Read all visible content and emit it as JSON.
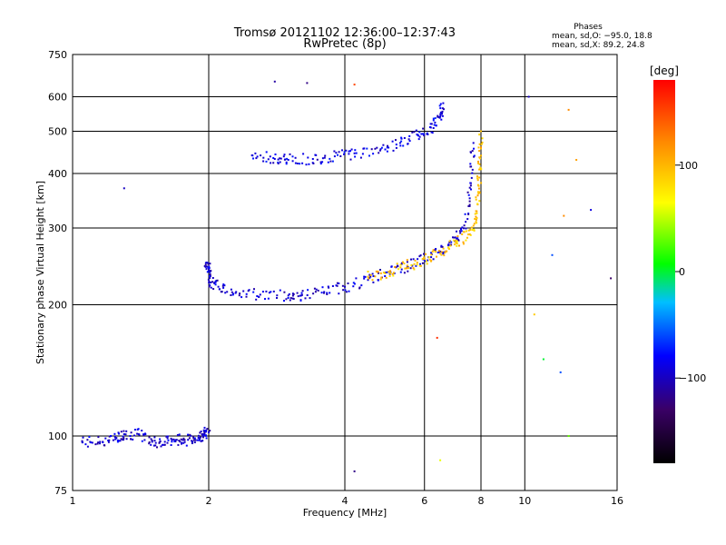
{
  "chart_data": {
    "type": "scatter",
    "title": "Tromsø 20121102 12:36:00–12:37:43",
    "subtitle": "RwPretec (8p)",
    "stats": {
      "heading": "Phases",
      "line1": "mean, sd,O: −95.0, 18.8",
      "line2": "mean, sd,X:  89.2, 24.8"
    },
    "xlabel": "Frequency [MHz]",
    "ylabel": "Stationary phase Virtual Height [km]",
    "xscale": "log",
    "yscale": "log",
    "xlim": [
      1,
      16
    ],
    "ylim": [
      75,
      750
    ],
    "xticks": [
      {
        "value": 1,
        "label": "1"
      },
      {
        "value": 2,
        "label": "2"
      },
      {
        "value": 4,
        "label": "4"
      },
      {
        "value": 6,
        "label": "6"
      },
      {
        "value": 8,
        "label": "8"
      },
      {
        "value": 10,
        "label": "10"
      },
      {
        "value": 16,
        "label": "16"
      }
    ],
    "yticks": [
      {
        "value": 75,
        "label": "75"
      },
      {
        "value": 100,
        "label": "100"
      },
      {
        "value": 200,
        "label": "200"
      },
      {
        "value": 300,
        "label": "300"
      },
      {
        "value": 400,
        "label": "400"
      },
      {
        "value": 500,
        "label": "500"
      },
      {
        "value": 600,
        "label": "600"
      },
      {
        "value": 750,
        "label": "750"
      }
    ],
    "grid": true,
    "colorbar": {
      "label": "[deg]",
      "range": [
        -180,
        180
      ],
      "ticks": [
        {
          "value": 100,
          "label": "100"
        },
        {
          "value": 0,
          "label": "0"
        },
        {
          "value": -100,
          "label": "−100"
        }
      ]
    },
    "traces": [
      {
        "name": "",
        "phase": -95,
        "points": [
          [
            1.05,
            97
          ],
          [
            1.15,
            97
          ],
          [
            1.25,
            99
          ],
          [
            1.3,
            101
          ],
          [
            1.4,
            101
          ],
          [
            1.5,
            97
          ],
          [
            1.6,
            97
          ],
          [
            1.7,
            98
          ],
          [
            1.8,
            98
          ],
          [
            1.9,
            99
          ],
          [
            1.95,
            101
          ],
          [
            2.0,
            102
          ]
        ]
      },
      {
        "name": "",
        "phase": -95,
        "points": [
          [
            1.98,
            250
          ],
          [
            2.0,
            240
          ],
          [
            2.02,
            225
          ],
          [
            2.1,
            220
          ],
          [
            2.3,
            214
          ],
          [
            2.6,
            211
          ],
          [
            3.0,
            210
          ],
          [
            3.2,
            210
          ],
          [
            3.6,
            214
          ],
          [
            4.0,
            220
          ],
          [
            4.5,
            228
          ],
          [
            5.0,
            238
          ],
          [
            5.5,
            245
          ],
          [
            6.0,
            255
          ],
          [
            6.5,
            265
          ],
          [
            7.0,
            280
          ],
          [
            7.4,
            310
          ],
          [
            7.6,
            380
          ],
          [
            7.7,
            470
          ]
        ]
      },
      {
        "name": "",
        "phase": -90,
        "points": [
          [
            2.5,
            440
          ],
          [
            2.8,
            432
          ],
          [
            3.0,
            430
          ],
          [
            3.4,
            432
          ],
          [
            3.8,
            438
          ],
          [
            4.2,
            445
          ],
          [
            4.8,
            455
          ],
          [
            5.3,
            470
          ],
          [
            5.8,
            490
          ],
          [
            6.2,
            510
          ],
          [
            6.5,
            540
          ],
          [
            6.6,
            580
          ]
        ]
      },
      {
        "name": "",
        "phase": 95,
        "points": [
          [
            4.5,
            232
          ],
          [
            5.0,
            238
          ],
          [
            5.5,
            246
          ],
          [
            6.0,
            255
          ],
          [
            6.5,
            262
          ],
          [
            7.0,
            275
          ],
          [
            7.5,
            290
          ],
          [
            7.8,
            310
          ],
          [
            7.9,
            360
          ],
          [
            7.95,
            420
          ],
          [
            8.0,
            500
          ]
        ]
      }
    ],
    "scattered": [
      {
        "f": 1.3,
        "h": 370,
        "phase": -100
      },
      {
        "f": 2.8,
        "h": 650,
        "phase": -110
      },
      {
        "f": 3.3,
        "h": 645,
        "phase": -120
      },
      {
        "f": 4.2,
        "h": 640,
        "phase": 150
      },
      {
        "f": 4.2,
        "h": 83,
        "phase": -120
      },
      {
        "f": 6.4,
        "h": 168,
        "phase": 160
      },
      {
        "f": 6.5,
        "h": 88,
        "phase": 60
      },
      {
        "f": 10.5,
        "h": 190,
        "phase": 90
      },
      {
        "f": 11.0,
        "h": 150,
        "phase": 0
      },
      {
        "f": 12.5,
        "h": 100,
        "phase": 30
      },
      {
        "f": 12.0,
        "h": 140,
        "phase": -60
      },
      {
        "f": 13.0,
        "h": 430,
        "phase": 110
      },
      {
        "f": 14.0,
        "h": 330,
        "phase": -90
      },
      {
        "f": 15.5,
        "h": 230,
        "phase": -130
      },
      {
        "f": 11.5,
        "h": 260,
        "phase": -60
      },
      {
        "f": 12.2,
        "h": 320,
        "phase": 120
      },
      {
        "f": 10.2,
        "h": 600,
        "phase": -100
      },
      {
        "f": 12.5,
        "h": 560,
        "phase": 120
      }
    ]
  }
}
